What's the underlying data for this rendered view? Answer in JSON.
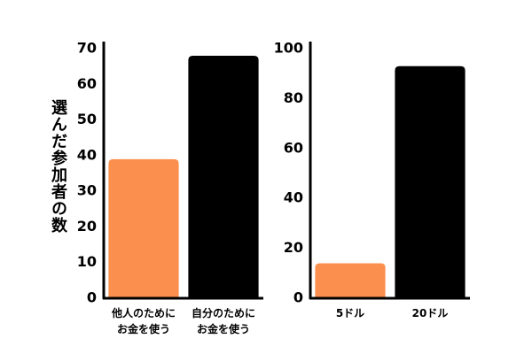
{
  "chart_data": [
    {
      "type": "bar",
      "y_label": "選んだ参加者の数",
      "categories": [
        "他人のために\nお金を使う",
        "自分のために\nお金を使う"
      ],
      "values": [
        39,
        68
      ],
      "colors": [
        "#fb8f4e",
        "#000000"
      ],
      "ylim": [
        0,
        70
      ],
      "yticks": [
        0,
        10,
        20,
        30,
        40,
        50,
        60,
        70
      ]
    },
    {
      "type": "bar",
      "categories": [
        "5ドル",
        "20ドル"
      ],
      "values": [
        14,
        93
      ],
      "colors": [
        "#fb8f4e",
        "#000000"
      ],
      "ylim": [
        0,
        100
      ],
      "yticks": [
        0,
        20,
        40,
        60,
        80,
        100
      ]
    }
  ]
}
